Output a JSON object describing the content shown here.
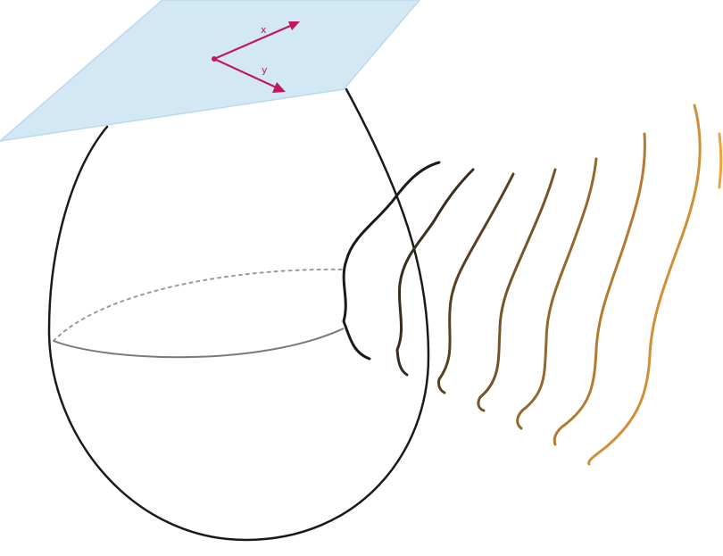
{
  "diagram": {
    "plane": {
      "fill": "#d3e8f5",
      "stroke": "#bcd8ea",
      "vector_color": "#c2185b",
      "vector_labels": [
        "x",
        "y"
      ]
    },
    "sphere": {
      "stroke": "#1a1a1a",
      "equator_front": "#7a7a7a",
      "equator_back": "#9a9a9a"
    },
    "waves": {
      "count": 8,
      "color_start": "#1a1a1a",
      "color_end": "#f0a23c"
    }
  }
}
